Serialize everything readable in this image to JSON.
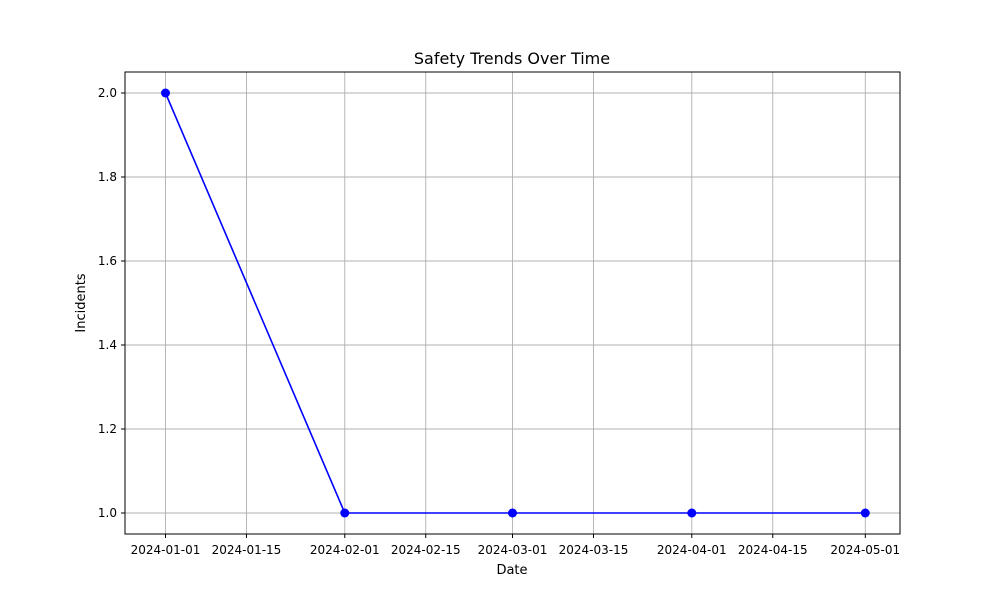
{
  "chart_data": {
    "type": "line",
    "title": "Safety Trends Over Time",
    "xlabel": "Date",
    "ylabel": "Incidents",
    "grid": true,
    "xlim": [
      "2023-12-25",
      "2024-05-07"
    ],
    "ylim": [
      0.95,
      2.05
    ],
    "x_ticks": [
      "2024-01-01",
      "2024-01-15",
      "2024-02-01",
      "2024-02-15",
      "2024-03-01",
      "2024-03-15",
      "2024-04-01",
      "2024-04-15",
      "2024-05-01"
    ],
    "y_ticks": [
      "1.0",
      "1.2",
      "1.4",
      "1.6",
      "1.8",
      "2.0"
    ],
    "series": [
      {
        "color": "#0000ff",
        "marker": "circle",
        "points": [
          {
            "x": "2024-01-01",
            "y": 2
          },
          {
            "x": "2024-02-01",
            "y": 1
          },
          {
            "x": "2024-03-01",
            "y": 1
          },
          {
            "x": "2024-04-01",
            "y": 1
          },
          {
            "x": "2024-05-01",
            "y": 1
          }
        ]
      }
    ]
  }
}
